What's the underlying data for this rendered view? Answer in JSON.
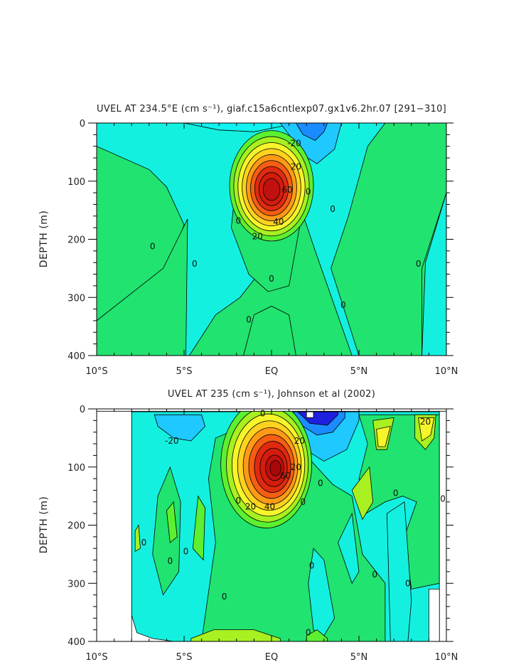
{
  "chart_data": [
    {
      "type": "heatmap",
      "subtype": "filled-contour",
      "title": "UVEL AT 234.5°E (cm s⁻¹), giaf.c15a6cntlexp07.gx1v6.2hr.07 [291−310]",
      "ylabel": "DEPTH (m)",
      "xlabel": "",
      "x_range": [
        -10,
        10
      ],
      "y_range": [
        0,
        400
      ],
      "y_inverted": true,
      "x_ticks": [
        "10°S",
        "5°S",
        "EQ",
        "5°N",
        "10°N"
      ],
      "y_ticks": [
        "0",
        "100",
        "200",
        "300",
        "400"
      ],
      "contour_interval": 10,
      "contour_labels": [
        {
          "text": "-20",
          "lat": 1.3,
          "depth": 35
        },
        {
          "text": "20",
          "lat": 1.4,
          "depth": 75
        },
        {
          "text": "60",
          "lat": 0.9,
          "depth": 115
        },
        {
          "text": "40",
          "lat": 0.4,
          "depth": 170
        },
        {
          "text": "20",
          "lat": -0.8,
          "depth": 195
        },
        {
          "text": "0",
          "lat": -1.9,
          "depth": 168
        },
        {
          "text": "0",
          "lat": 2.1,
          "depth": 118
        },
        {
          "text": "0",
          "lat": 3.5,
          "depth": 148
        },
        {
          "text": "0",
          "lat": -6.8,
          "depth": 212
        },
        {
          "text": "0",
          "lat": -4.4,
          "depth": 242
        },
        {
          "text": "0",
          "lat": 0.0,
          "depth": 268
        },
        {
          "text": "0",
          "lat": 4.1,
          "depth": 313
        },
        {
          "text": "0",
          "lat": -1.3,
          "depth": 338
        },
        {
          "text": "0",
          "lat": 8.4,
          "depth": 242
        }
      ],
      "features": {
        "core_max_cm_s": 70,
        "core_lat": 0.0,
        "core_depth_m": 105,
        "surface_westward_min_cm_s": -30,
        "surface_westward_lat": 2.3
      }
    },
    {
      "type": "heatmap",
      "subtype": "filled-contour",
      "title": "UVEL AT 235 (cm s⁻¹), Johnson et al (2002)",
      "ylabel": "DEPTH (m)",
      "xlabel": "",
      "x_range": [
        -10,
        10
      ],
      "y_range": [
        0,
        400
      ],
      "y_inverted": true,
      "x_ticks": [
        "10°S",
        "5°S",
        "EQ",
        "5°N",
        "10°N"
      ],
      "y_ticks": [
        "0",
        "100",
        "200",
        "300",
        "400"
      ],
      "contour_interval": 10,
      "contour_labels": [
        {
          "text": "-20",
          "lat": -5.7,
          "depth": 55
        },
        {
          "text": "0",
          "lat": -0.5,
          "depth": 8
        },
        {
          "text": "20",
          "lat": 1.6,
          "depth": 55
        },
        {
          "text": "60",
          "lat": 0.8,
          "depth": 115
        },
        {
          "text": "20",
          "lat": 1.4,
          "depth": 100
        },
        {
          "text": "20",
          "lat": -1.2,
          "depth": 168
        },
        {
          "text": "40",
          "lat": -0.1,
          "depth": 168
        },
        {
          "text": "0",
          "lat": 2.8,
          "depth": 128
        },
        {
          "text": "0",
          "lat": 1.8,
          "depth": 160
        },
        {
          "text": "0",
          "lat": -1.9,
          "depth": 158
        },
        {
          "text": "0",
          "lat": 7.1,
          "depth": 145
        },
        {
          "text": "0",
          "lat": 9.8,
          "depth": 155
        },
        {
          "text": "0",
          "lat": -7.3,
          "depth": 230
        },
        {
          "text": "0",
          "lat": -4.9,
          "depth": 245
        },
        {
          "text": "0",
          "lat": -5.8,
          "depth": 262
        },
        {
          "text": "0",
          "lat": 2.3,
          "depth": 270
        },
        {
          "text": "0",
          "lat": 5.9,
          "depth": 285
        },
        {
          "text": "0",
          "lat": 7.8,
          "depth": 300
        },
        {
          "text": "0",
          "lat": -2.7,
          "depth": 323
        },
        {
          "text": "0",
          "lat": 2.1,
          "depth": 385
        },
        {
          "text": "20",
          "lat": 8.8,
          "depth": 22
        }
      ],
      "features": {
        "core_max_cm_s": 70,
        "core_lat": -0.3,
        "core_depth_m": 90,
        "surface_westward_min_cm_s": -50,
        "surface_westward_lat": 2.7
      }
    }
  ]
}
